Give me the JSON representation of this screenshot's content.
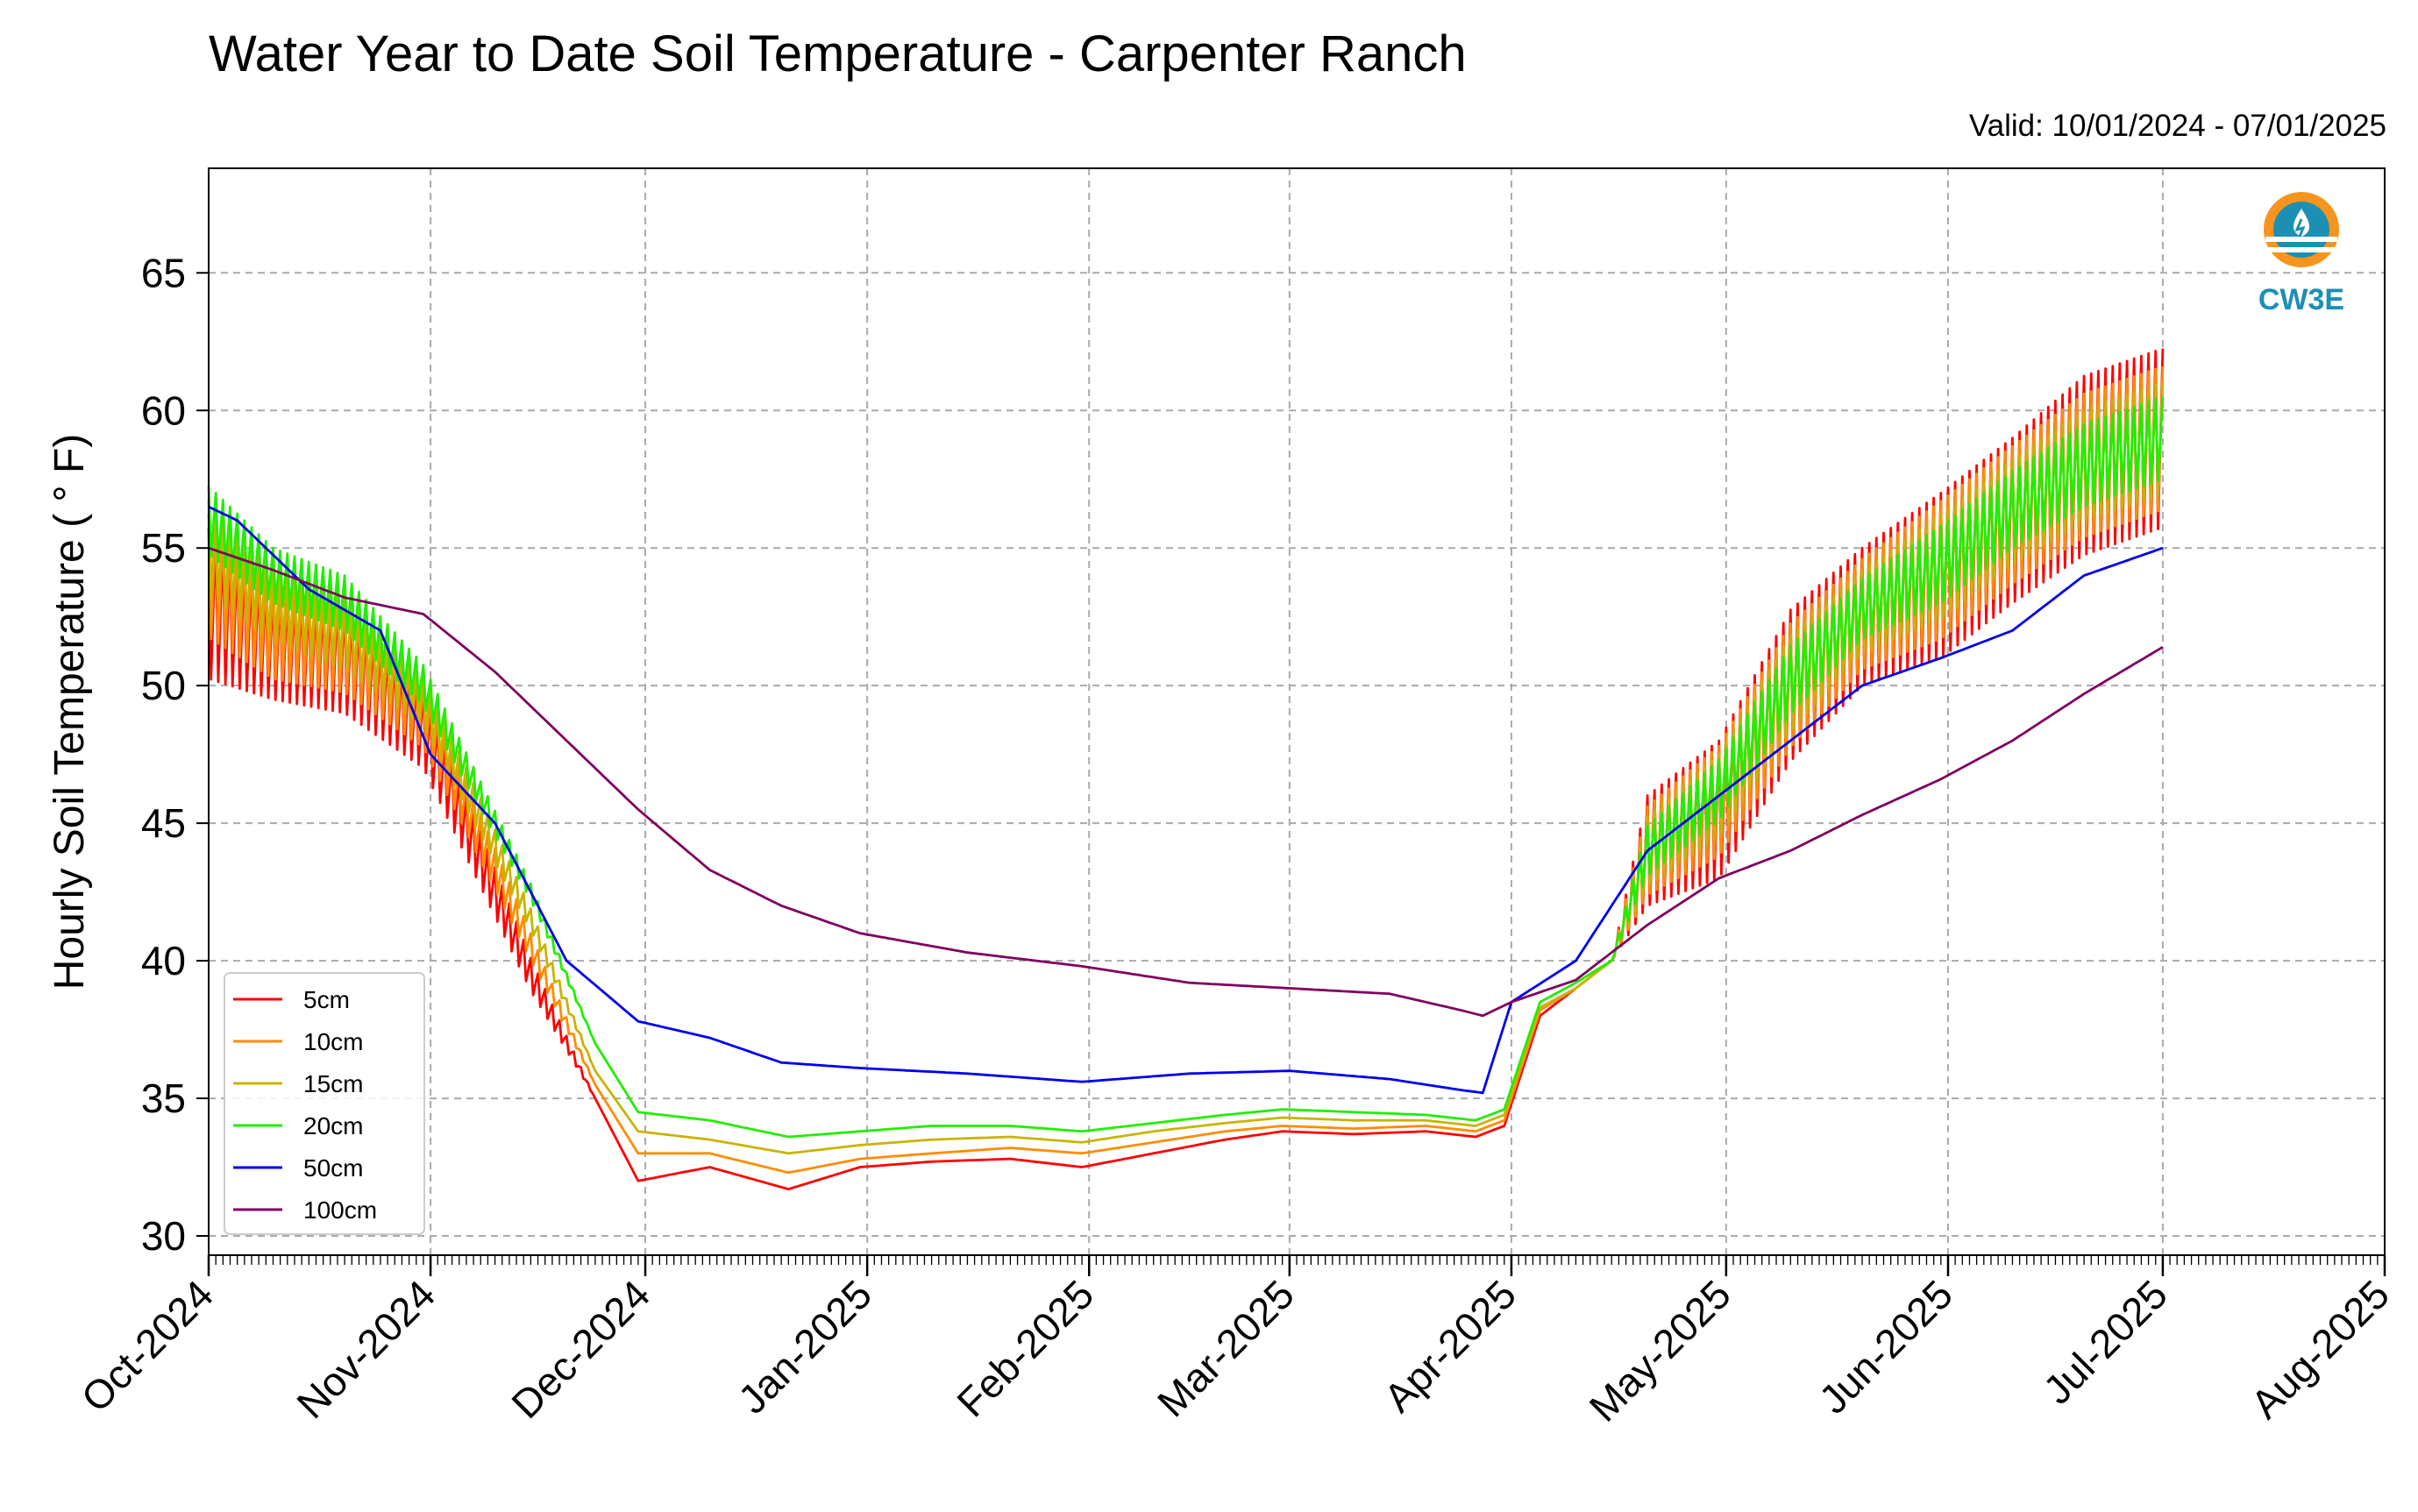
{
  "chart_data": {
    "type": "line",
    "title": "Water Year to Date Soil Temperature - Carpenter Ranch",
    "subtitle": "Valid: 10/01/2024 - 07/01/2025",
    "xlabel": "",
    "ylabel": "Hourly Soil Temperature ( ° F)",
    "x_tick_labels": [
      "Oct-2024",
      "Nov-2024",
      "Dec-2024",
      "Jan-2025",
      "Feb-2025",
      "Mar-2025",
      "Apr-2025",
      "May-2025",
      "Jun-2025",
      "Jul-2025",
      "Aug-2025"
    ],
    "y_ticks": [
      30,
      35,
      40,
      45,
      50,
      55,
      60,
      65
    ],
    "xlim": [
      "2024-10-01",
      "2025-08-01"
    ],
    "ylim": [
      29.3,
      68.8
    ],
    "grid": true,
    "legend_position": "lower-left",
    "logo_text": "CW3E",
    "series": [
      {
        "name": "5cm",
        "color": "#ff0000",
        "amplitude": [
          5.5,
          4,
          4,
          3,
          1.2,
          0,
          0,
          0,
          0,
          0,
          0,
          0,
          0,
          0,
          0,
          0,
          0,
          0,
          0,
          0,
          0,
          0,
          0,
          4,
          5,
          5.5,
          5,
          6,
          6,
          6.5,
          6.5
        ],
        "x": [
          "2024-10-01",
          "2024-10-10",
          "2024-10-20",
          "2024-10-31",
          "2024-11-15",
          "2024-11-24",
          "2024-11-30",
          "2024-12-10",
          "2024-12-21",
          "2024-12-31",
          "2025-01-10",
          "2025-01-21",
          "2025-01-31",
          "2025-02-10",
          "2025-02-20",
          "2025-02-28",
          "2025-03-10",
          "2025-03-20",
          "2025-03-27",
          "2025-03-31",
          "2025-04-05",
          "2025-04-10",
          "2025-04-15",
          "2025-04-20",
          "2025-04-30",
          "2025-05-10",
          "2025-05-20",
          "2025-05-31",
          "2025-06-10",
          "2025-06-20",
          "2025-07-01"
        ],
        "y": [
          53,
          51.5,
          51,
          48.5,
          39.5,
          35,
          32,
          32.5,
          31.7,
          32.5,
          32.7,
          32.8,
          32.5,
          33,
          33.5,
          33.8,
          33.7,
          33.8,
          33.6,
          34,
          38,
          39,
          40,
          44,
          45.5,
          50,
          52.5,
          54,
          56,
          58,
          59
        ]
      },
      {
        "name": "10cm",
        "color": "#ff8c00",
        "amplitude": [
          4.5,
          3.5,
          3.5,
          2.5,
          1,
          0,
          0,
          0,
          0,
          0,
          0,
          0,
          0,
          0,
          0,
          0,
          0,
          0,
          0,
          0,
          0,
          0,
          0,
          3.2,
          4,
          4.5,
          4,
          5,
          5,
          5.2,
          5.2
        ],
        "x": [
          "2024-10-01",
          "2024-10-10",
          "2024-10-20",
          "2024-10-31",
          "2024-11-15",
          "2024-11-24",
          "2024-11-30",
          "2024-12-10",
          "2024-12-21",
          "2024-12-31",
          "2025-01-10",
          "2025-01-21",
          "2025-01-31",
          "2025-02-10",
          "2025-02-20",
          "2025-02-28",
          "2025-03-10",
          "2025-03-20",
          "2025-03-27",
          "2025-03-31",
          "2025-04-05",
          "2025-04-10",
          "2025-04-15",
          "2025-04-20",
          "2025-04-30",
          "2025-05-10",
          "2025-05-20",
          "2025-05-31",
          "2025-06-10",
          "2025-06-20",
          "2025-07-01"
        ],
        "y": [
          54,
          52,
          51.5,
          49,
          40.5,
          35.5,
          33,
          33,
          32.3,
          32.8,
          33,
          33.2,
          33,
          33.4,
          33.8,
          34,
          33.9,
          34,
          33.8,
          34.2,
          38.2,
          39,
          40,
          44,
          45.8,
          50,
          52.6,
          54.2,
          56.2,
          58,
          59
        ]
      },
      {
        "name": "15cm",
        "color": "#c8b400",
        "amplitude": [
          3.5,
          2.8,
          2.8,
          2,
          0.8,
          0,
          0,
          0,
          0,
          0,
          0,
          0,
          0,
          0,
          0,
          0,
          0,
          0,
          0,
          0,
          0,
          0,
          0,
          2.5,
          3,
          3.5,
          3,
          3.8,
          3.8,
          4,
          4
        ],
        "x": [
          "2024-10-01",
          "2024-10-10",
          "2024-10-20",
          "2024-10-31",
          "2024-11-15",
          "2024-11-24",
          "2024-11-30",
          "2024-12-10",
          "2024-12-21",
          "2024-12-31",
          "2025-01-10",
          "2025-01-21",
          "2025-01-31",
          "2025-02-10",
          "2025-02-20",
          "2025-02-28",
          "2025-03-10",
          "2025-03-20",
          "2025-03-27",
          "2025-03-31",
          "2025-04-05",
          "2025-04-10",
          "2025-04-15",
          "2025-04-20",
          "2025-04-30",
          "2025-05-10",
          "2025-05-20",
          "2025-05-31",
          "2025-06-10",
          "2025-06-20",
          "2025-07-01"
        ],
        "y": [
          55,
          53,
          52,
          49.5,
          41.5,
          36,
          33.8,
          33.5,
          33,
          33.3,
          33.5,
          33.6,
          33.4,
          33.8,
          34.1,
          34.3,
          34.2,
          34.2,
          34,
          34.4,
          38.3,
          39,
          40,
          44,
          46,
          50.1,
          52.7,
          54.3,
          56.3,
          58,
          59
        ]
      },
      {
        "name": "20cm",
        "color": "#22ee00",
        "amplitude": [
          2.5,
          2,
          2,
          1.5,
          0.6,
          0,
          0,
          0,
          0,
          0,
          0,
          0,
          0,
          0,
          0,
          0,
          0,
          0,
          0,
          0,
          0,
          0,
          0,
          1.8,
          2.2,
          2.5,
          2.2,
          2.8,
          2.8,
          3,
          3
        ],
        "x": [
          "2024-10-01",
          "2024-10-10",
          "2024-10-20",
          "2024-10-31",
          "2024-11-15",
          "2024-11-24",
          "2024-11-30",
          "2024-12-10",
          "2024-12-21",
          "2024-12-31",
          "2025-01-10",
          "2025-01-21",
          "2025-01-31",
          "2025-02-10",
          "2025-02-20",
          "2025-02-28",
          "2025-03-10",
          "2025-03-20",
          "2025-03-27",
          "2025-03-31",
          "2025-04-05",
          "2025-04-10",
          "2025-04-15",
          "2025-04-20",
          "2025-04-30",
          "2025-05-10",
          "2025-05-20",
          "2025-05-31",
          "2025-06-10",
          "2025-06-20",
          "2025-07-01"
        ],
        "y": [
          56,
          54,
          53,
          50,
          42.5,
          37,
          34.5,
          34.2,
          33.6,
          33.8,
          34,
          34,
          33.8,
          34.1,
          34.4,
          34.6,
          34.5,
          34.4,
          34.2,
          34.6,
          38.5,
          39.2,
          40,
          44,
          46.2,
          50.2,
          52.8,
          54.4,
          56.4,
          58,
          59
        ]
      },
      {
        "name": "50cm",
        "color": "#0000ee",
        "amplitude": [],
        "x": [
          "2024-10-01",
          "2024-10-05",
          "2024-10-15",
          "2024-10-25",
          "2024-11-01",
          "2024-11-10",
          "2024-11-20",
          "2024-11-30",
          "2024-12-10",
          "2024-12-20",
          "2024-12-31",
          "2025-01-15",
          "2025-01-31",
          "2025-02-15",
          "2025-03-01",
          "2025-03-15",
          "2025-03-25",
          "2025-03-28",
          "2025-04-01",
          "2025-04-10",
          "2025-04-20",
          "2025-04-30",
          "2025-05-10",
          "2025-05-20",
          "2025-05-31",
          "2025-06-10",
          "2025-06-20",
          "2025-07-01"
        ],
        "y": [
          56.5,
          56,
          53.5,
          52,
          47.5,
          45,
          40,
          37.8,
          37.2,
          36.3,
          36.1,
          35.9,
          35.6,
          35.9,
          36,
          35.7,
          35.3,
          35.2,
          38.5,
          40,
          44,
          46,
          48,
          50,
          51,
          52,
          54,
          55
        ]
      },
      {
        "name": "100cm",
        "color": "#800060",
        "amplitude": [],
        "x": [
          "2024-10-01",
          "2024-10-10",
          "2024-10-20",
          "2024-10-31",
          "2024-11-10",
          "2024-11-20",
          "2024-11-30",
          "2024-12-10",
          "2024-12-20",
          "2024-12-31",
          "2025-01-15",
          "2025-01-31",
          "2025-02-15",
          "2025-03-01",
          "2025-03-15",
          "2025-03-25",
          "2025-03-28",
          "2025-04-01",
          "2025-04-10",
          "2025-04-20",
          "2025-04-30",
          "2025-05-10",
          "2025-05-20",
          "2025-05-31",
          "2025-06-10",
          "2025-06-20",
          "2025-07-01"
        ],
        "y": [
          55,
          54.2,
          53.2,
          52.6,
          50.5,
          48,
          45.5,
          43.3,
          42,
          41,
          40.3,
          39.8,
          39.2,
          39,
          38.8,
          38.2,
          38,
          38.5,
          39.3,
          41.3,
          43,
          44,
          45.3,
          46.6,
          48,
          49.7,
          51.4
        ]
      }
    ]
  }
}
